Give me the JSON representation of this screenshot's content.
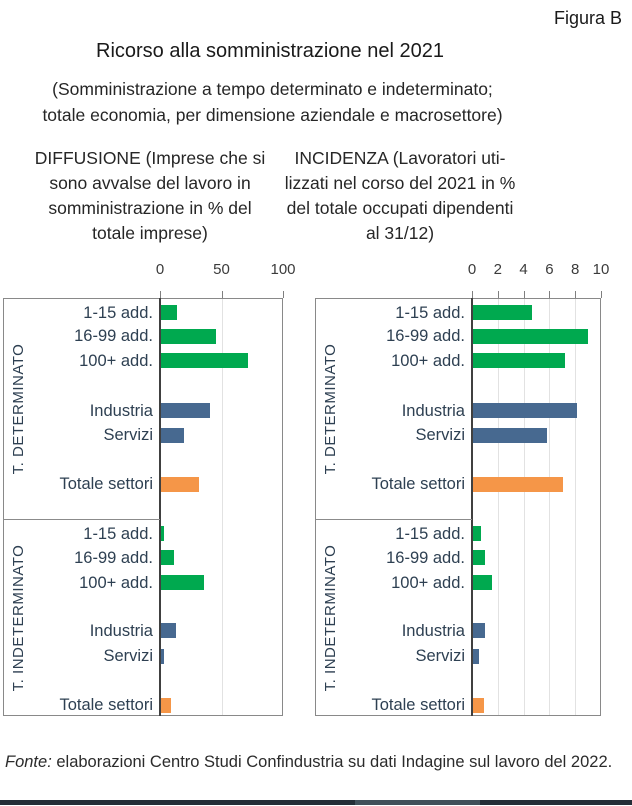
{
  "figure_label": "Figura B",
  "title": "Ricorso alla somministrazione nel 2021",
  "subtitle_line1": "(Somministrazione a tempo determinato e indeterminato;",
  "subtitle_line2": "totale economia, per dimensione aziendale e macrosettore)",
  "footer": {
    "fonte_prefix": "Fonte:",
    "fonte_text": " elaborazioni Centro Studi Confindustria su dati Indagine sul lavoro del 2022."
  },
  "colors": {
    "green": "#00a94f",
    "blue": "#476990",
    "orange": "#f59648",
    "axis": "#404040",
    "grid": "#e2e2e2",
    "frame": "#898989"
  },
  "chart_data": [
    {
      "type": "bar",
      "orientation": "horizontal",
      "title": "DIFFUSIONE (Imprese che si sono avvalse del lavoro in somministrazione in % del totale imprese)",
      "heading_lines": [
        "DIFFUSIONE (Imprese che si",
        "sono avvalse del lavoro in",
        "somministrazione in % del",
        "totale imprese)"
      ],
      "xlim": [
        0,
        100
      ],
      "xticks": [
        0,
        50,
        100
      ],
      "grid": "on",
      "categories": [
        "1-15 add.",
        "16-99 add.",
        "100+ add.",
        "Industria",
        "Servizi",
        "Totale settori"
      ],
      "category_colors": [
        "green",
        "green",
        "green",
        "blue",
        "blue",
        "orange"
      ],
      "groups": [
        {
          "label": "T. DETERMINATO",
          "values": [
            13,
            45,
            71,
            40,
            18.5,
            31
          ]
        },
        {
          "label": "T. INDETERMINATO",
          "values": [
            2.5,
            10.5,
            35,
            12.5,
            2.3,
            8.3
          ]
        }
      ]
    },
    {
      "type": "bar",
      "orientation": "horizontal",
      "title": "INCIDENZA (Lavoratori utilizzati nel corso del 2021 in % del totale occupati dipendenti al 31/12)",
      "heading_lines": [
        "INCIDENZA (Lavoratori uti-",
        "lizzati nel corso del 2021 in %",
        "del totale occupati dipendenti",
        "al 31/12)"
      ],
      "xlim": [
        0,
        10
      ],
      "xticks": [
        0,
        2,
        4,
        6,
        8,
        10
      ],
      "grid": "on",
      "categories": [
        "1-15 add.",
        "16-99 add.",
        "100+ add.",
        "Industria",
        "Servizi",
        "Totale settori"
      ],
      "category_colors": [
        "green",
        "green",
        "green",
        "blue",
        "blue",
        "orange"
      ],
      "groups": [
        {
          "label": "T. DETERMINATO",
          "values": [
            4.6,
            8.9,
            7.1,
            8.1,
            5.7,
            7.0
          ]
        },
        {
          "label": "T. INDETERMINATO",
          "values": [
            0.6,
            0.9,
            1.45,
            0.95,
            0.5,
            0.85
          ]
        }
      ]
    }
  ]
}
